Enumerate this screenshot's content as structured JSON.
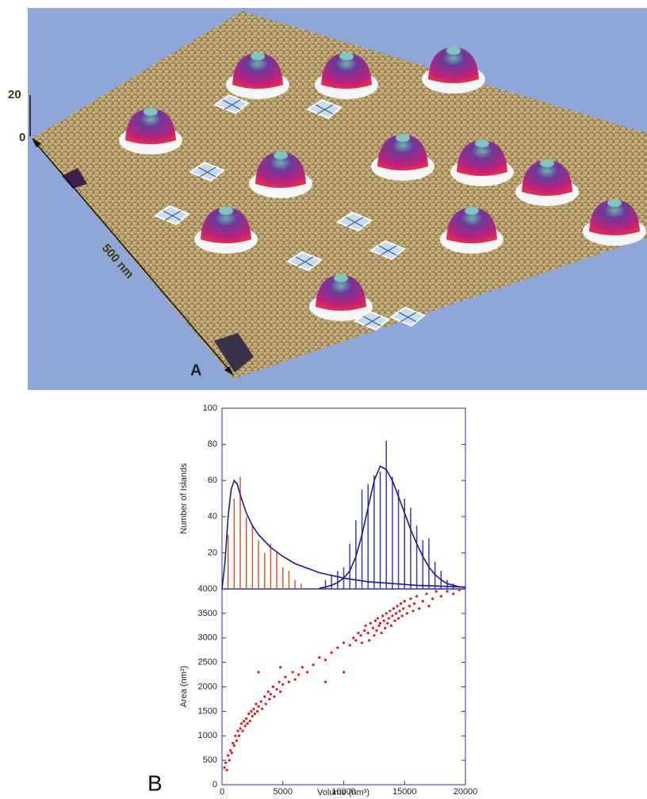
{
  "figure": {
    "scale_top": "20",
    "scale_zero": "0",
    "length": "500 nm",
    "label_a": "A",
    "label_b": "B"
  },
  "chart_data": [
    {
      "type": "bar",
      "y_label": "Number of Islands",
      "xlim": [
        0,
        20000
      ],
      "ylim": [
        0,
        100
      ],
      "yticks": [
        20,
        40,
        60,
        80,
        100
      ],
      "series": [
        {
          "type": "bar",
          "color": "#e0552a",
          "x": [
            500,
            1000,
            1500,
            2000,
            2500,
            3000,
            3500,
            4000,
            4500,
            5000,
            5500,
            6000,
            6500
          ],
          "values": [
            30,
            50,
            62,
            40,
            35,
            27,
            20,
            25,
            20,
            12,
            10,
            5,
            3
          ]
        },
        {
          "type": "bar",
          "color": "#3a3ab8",
          "x": [
            8500,
            9000,
            9500,
            10000,
            10500,
            11000,
            11500,
            12000,
            12500,
            13000,
            13500,
            14000,
            14500,
            15000,
            15500,
            16000,
            16500,
            17000,
            17500,
            18000,
            18500,
            19000
          ],
          "values": [
            5,
            8,
            10,
            12,
            25,
            38,
            55,
            58,
            63,
            65,
            82,
            62,
            55,
            50,
            45,
            35,
            27,
            28,
            15,
            10,
            5,
            3
          ]
        },
        {
          "type": "line",
          "color": "#1c1c8a",
          "x": [
            0,
            250,
            500,
            750,
            1000,
            1250,
            1500,
            2000,
            2500,
            3000,
            4000,
            5000,
            6000,
            8000,
            10000,
            12000,
            14000,
            16000,
            18000,
            20000
          ],
          "values": [
            0,
            15,
            40,
            55,
            60,
            58,
            52,
            42,
            35,
            30,
            23,
            18,
            14,
            9,
            6,
            4,
            3,
            2,
            1.5,
            1
          ]
        },
        {
          "type": "line",
          "color": "#1c1c8a",
          "x": [
            8000,
            8500,
            9000,
            9500,
            10000,
            10500,
            11000,
            11500,
            12000,
            12500,
            13000,
            13500,
            14000,
            14500,
            15000,
            15500,
            16000,
            16500,
            17000,
            17500,
            18000,
            18500,
            19000,
            19500,
            20000
          ],
          "values": [
            0.5,
            1,
            2,
            3.5,
            6,
            10,
            18,
            30,
            45,
            60,
            68,
            66,
            60,
            51,
            42,
            33,
            25,
            18,
            12,
            8,
            5,
            3,
            2,
            1.2,
            0.8
          ]
        }
      ]
    },
    {
      "type": "scatter",
      "x_label": "Volume (nm³)",
      "y_label": "Area (nm²)",
      "color": "#e8141b",
      "xlim": [
        0,
        20000
      ],
      "ylim": [
        0,
        4000
      ],
      "xticks": [
        0,
        5000,
        10000,
        15000,
        20000
      ],
      "yticks": [
        0,
        500,
        1000,
        1500,
        2000,
        2500,
        3000,
        3500,
        4000
      ],
      "x": [
        200,
        300,
        400,
        500,
        600,
        700,
        800,
        900,
        1000,
        1100,
        1200,
        1300,
        1400,
        1500,
        1600,
        1700,
        1800,
        1900,
        2000,
        2100,
        2200,
        2300,
        2400,
        2500,
        2600,
        2700,
        2800,
        2900,
        3000,
        3200,
        3300,
        3500,
        3600,
        3800,
        3900,
        4000,
        4200,
        4300,
        4500,
        4700,
        4800,
        5000,
        5200,
        5500,
        5800,
        6000,
        6300,
        6600,
        7000,
        7500,
        8000,
        8500,
        9000,
        9500,
        10000,
        10500,
        10800,
        11000,
        11200,
        11400,
        11500,
        11700,
        11800,
        12000,
        12100,
        12200,
        12400,
        12500,
        12600,
        12700,
        12800,
        12900,
        13000,
        13100,
        13200,
        13300,
        13400,
        13500,
        13600,
        13700,
        13800,
        13900,
        14000,
        14100,
        14200,
        14300,
        14400,
        14500,
        14600,
        14700,
        14800,
        14900,
        15000,
        15200,
        15400,
        15500,
        15700,
        15800,
        16000,
        16200,
        16500,
        16800,
        17000,
        17300,
        17600,
        18000,
        18500,
        19000,
        19500,
        3000,
        4800,
        8500,
        10000
      ],
      "values": [
        350,
        450,
        300,
        600,
        500,
        700,
        650,
        850,
        800,
        1000,
        900,
        1100,
        1000,
        1150,
        1250,
        1100,
        1300,
        1200,
        1350,
        1250,
        1450,
        1300,
        1500,
        1400,
        1550,
        1450,
        1650,
        1500,
        1600,
        1700,
        1550,
        1800,
        1650,
        1900,
        1750,
        1850,
        2000,
        1800,
        1950,
        2100,
        1900,
        2050,
        2200,
        2100,
        2300,
        2150,
        2250,
        2400,
        2300,
        2450,
        2600,
        2550,
        2700,
        2800,
        2900,
        2850,
        3000,
        2950,
        3100,
        3050,
        2900,
        3150,
        3250,
        3100,
        2950,
        3300,
        3200,
        3050,
        3350,
        3150,
        3400,
        3250,
        3300,
        3100,
        3450,
        3350,
        3200,
        3500,
        3300,
        3400,
        3550,
        3250,
        3450,
        3600,
        3350,
        3500,
        3650,
        3400,
        3550,
        3700,
        3450,
        3600,
        3750,
        3500,
        3650,
        3800,
        3550,
        3700,
        3850,
        3600,
        3750,
        3900,
        3650,
        3800,
        3950,
        3850,
        3950,
        3900,
        3980,
        2300,
        2400,
        2100,
        2300
      ]
    }
  ]
}
